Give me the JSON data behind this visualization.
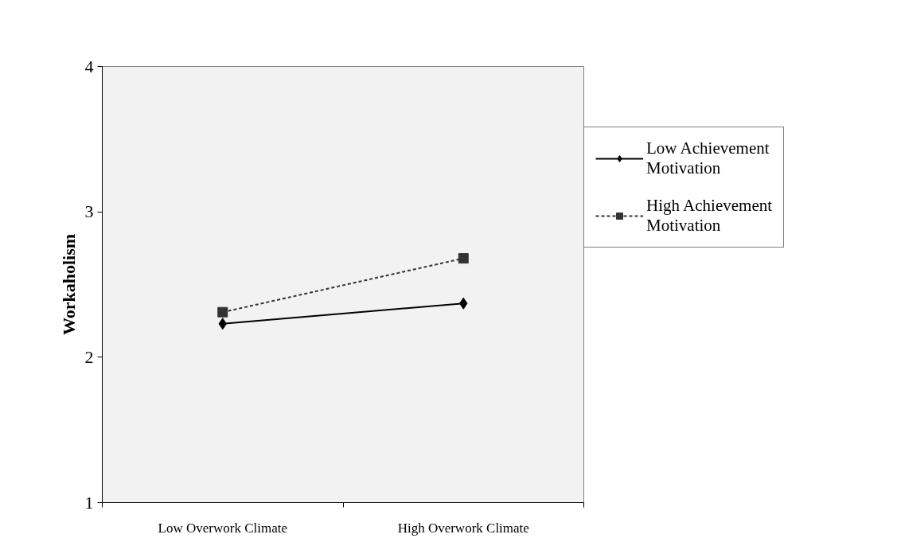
{
  "chart_data": {
    "type": "line",
    "ylabel": "Workaholism",
    "categories": [
      "Low Overwork Climate",
      "High Overwork Climate"
    ],
    "series": [
      {
        "name": "Low Achievement Motivation",
        "color": "#000000",
        "values": [
          2.23,
          2.37
        ],
        "marker": "diamond",
        "line_style": "solid"
      },
      {
        "name": "High Achievement Motivation",
        "color": "#333333",
        "values": [
          2.31,
          2.68
        ],
        "marker": "square",
        "line_style": "dashed"
      }
    ],
    "ylim": [
      1,
      4
    ],
    "yticks": [
      1,
      2,
      3,
      4
    ],
    "grid": false,
    "legend": "right"
  }
}
